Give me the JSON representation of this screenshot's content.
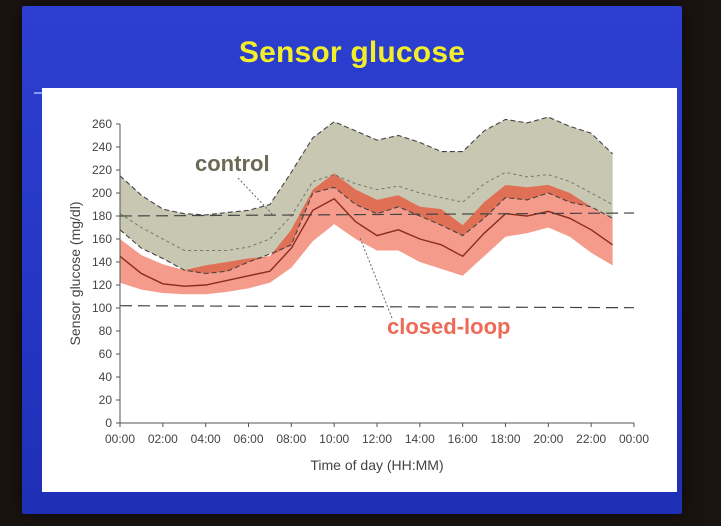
{
  "slide": {
    "title": "Sensor glucose"
  },
  "chart_data": {
    "type": "area",
    "title": "",
    "xlabel": "Time of day (HH:MM)",
    "ylabel": "Sensor glucose (mg/dl)",
    "xlim": [
      0,
      24
    ],
    "ylim": [
      0,
      260
    ],
    "x_ticks": [
      "00:00",
      "02:00",
      "04:00",
      "06:00",
      "08:00",
      "10:00",
      "12:00",
      "14:00",
      "16:00",
      "18:00",
      "20:00",
      "22:00",
      "00:00"
    ],
    "y_ticks": [
      0,
      20,
      40,
      60,
      80,
      100,
      120,
      140,
      160,
      180,
      200,
      220,
      240,
      260
    ],
    "reference_lines": [
      102,
      180
    ],
    "x": [
      0,
      1,
      2,
      3,
      4,
      5,
      6,
      7,
      8,
      9,
      10,
      11,
      12,
      13,
      14,
      15,
      16,
      17,
      18,
      19,
      20,
      21,
      22,
      23
    ],
    "series": [
      {
        "name": "control",
        "color": "#8e8e6e",
        "upper": [
          215,
          198,
          186,
          182,
          181,
          183,
          185,
          190,
          218,
          248,
          262,
          254,
          246,
          250,
          244,
          236,
          236,
          254,
          264,
          261,
          266,
          258,
          252,
          234
        ],
        "median": [
          182,
          170,
          160,
          150,
          150,
          150,
          153,
          160,
          180,
          210,
          216,
          208,
          203,
          206,
          200,
          196,
          192,
          208,
          218,
          214,
          216,
          210,
          200,
          190
        ],
        "lower": [
          168,
          152,
          143,
          133,
          130,
          132,
          140,
          147,
          155,
          200,
          205,
          190,
          182,
          188,
          180,
          172,
          163,
          178,
          196,
          194,
          200,
          192,
          188,
          178
        ]
      },
      {
        "name": "closed-loop",
        "color": "#f07a68",
        "upper": [
          160,
          146,
          138,
          133,
          137,
          140,
          143,
          145,
          168,
          203,
          217,
          203,
          194,
          198,
          188,
          186,
          172,
          192,
          207,
          205,
          207,
          200,
          188,
          178
        ],
        "median": [
          145,
          130,
          121,
          119,
          120,
          124,
          128,
          132,
          152,
          185,
          195,
          175,
          163,
          168,
          160,
          155,
          145,
          165,
          182,
          180,
          184,
          178,
          168,
          155
        ],
        "lower": [
          122,
          116,
          113,
          112,
          112,
          114,
          117,
          122,
          135,
          158,
          173,
          160,
          150,
          150,
          140,
          134,
          128,
          145,
          162,
          165,
          170,
          162,
          148,
          137
        ]
      }
    ],
    "annotations": [
      {
        "text": "control",
        "color": "#6b6b55"
      },
      {
        "text": "closed-loop",
        "color": "#ee6a56"
      }
    ]
  }
}
